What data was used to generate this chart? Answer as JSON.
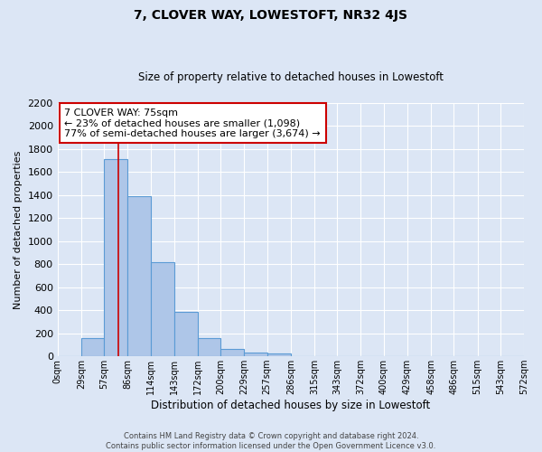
{
  "title": "7, CLOVER WAY, LOWESTOFT, NR32 4JS",
  "subtitle": "Size of property relative to detached houses in Lowestoft",
  "xlabel": "Distribution of detached houses by size in Lowestoft",
  "ylabel": "Number of detached properties",
  "bar_values": [
    0,
    155,
    1710,
    1390,
    820,
    385,
    160,
    65,
    30,
    25,
    0,
    0,
    0,
    0,
    0,
    0,
    0,
    0,
    0,
    0
  ],
  "bin_edges": [
    0,
    29,
    57,
    86,
    114,
    143,
    172,
    200,
    229,
    257,
    286,
    315,
    343,
    372,
    400,
    429,
    458,
    486,
    515,
    543,
    572
  ],
  "tick_labels": [
    "0sqm",
    "29sqm",
    "57sqm",
    "86sqm",
    "114sqm",
    "143sqm",
    "172sqm",
    "200sqm",
    "229sqm",
    "257sqm",
    "286sqm",
    "315sqm",
    "343sqm",
    "372sqm",
    "400sqm",
    "429sqm",
    "458sqm",
    "486sqm",
    "515sqm",
    "543sqm",
    "572sqm"
  ],
  "bar_color": "#aec6e8",
  "bar_edge_color": "#5b9bd5",
  "ylim": [
    0,
    2200
  ],
  "yticks": [
    0,
    200,
    400,
    600,
    800,
    1000,
    1200,
    1400,
    1600,
    1800,
    2000,
    2200
  ],
  "property_size": 75,
  "property_label": "7 CLOVER WAY: 75sqm",
  "annotation_line1": "← 23% of detached houses are smaller (1,098)",
  "annotation_line2": "77% of semi-detached houses are larger (3,674) →",
  "annotation_box_color": "#ffffff",
  "annotation_box_edge_color": "#cc0000",
  "vline_color": "#cc0000",
  "footer_line1": "Contains HM Land Registry data © Crown copyright and database right 2024.",
  "footer_line2": "Contains public sector information licensed under the Open Government Licence v3.0.",
  "bg_color": "#dce6f5",
  "plot_bg_color": "#dce6f5",
  "grid_color": "#ffffff"
}
